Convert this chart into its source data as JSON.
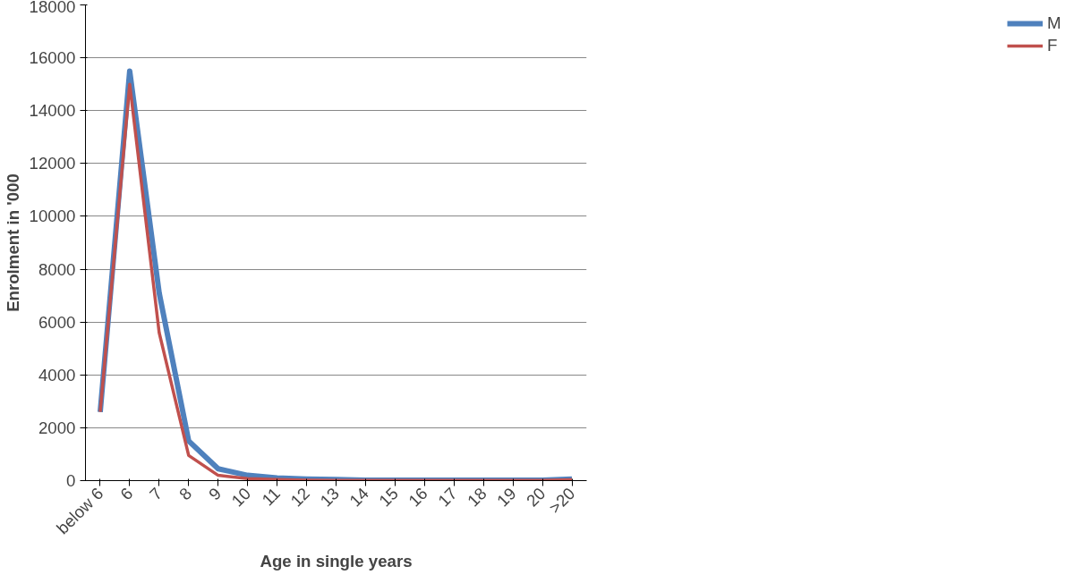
{
  "chart_data": {
    "type": "line",
    "xlabel": "Age in single years",
    "ylabel": "Enrolment in '000",
    "categories": [
      "below 6",
      "6",
      "7",
      "8",
      "9",
      "10",
      "11",
      "12",
      "13",
      "14",
      "15",
      "16",
      "17",
      "18",
      "19",
      "20",
      ">20"
    ],
    "series": [
      {
        "name": "M",
        "color": "#4f81bd",
        "values": [
          2600,
          15500,
          7100,
          1500,
          450,
          200,
          100,
          60,
          40,
          20,
          20,
          20,
          20,
          20,
          20,
          20,
          60
        ]
      },
      {
        "name": "F",
        "color": "#c0504d",
        "values": [
          2600,
          15000,
          5600,
          950,
          200,
          80,
          40,
          20,
          10,
          10,
          10,
          10,
          10,
          10,
          10,
          10,
          30
        ]
      }
    ],
    "ylim": [
      0,
      18000
    ],
    "yticks": [
      0,
      2000,
      4000,
      6000,
      8000,
      10000,
      12000,
      14000,
      16000,
      18000
    ],
    "grid": "y",
    "legend": "right",
    "marker": "none",
    "line_style": "solid"
  }
}
